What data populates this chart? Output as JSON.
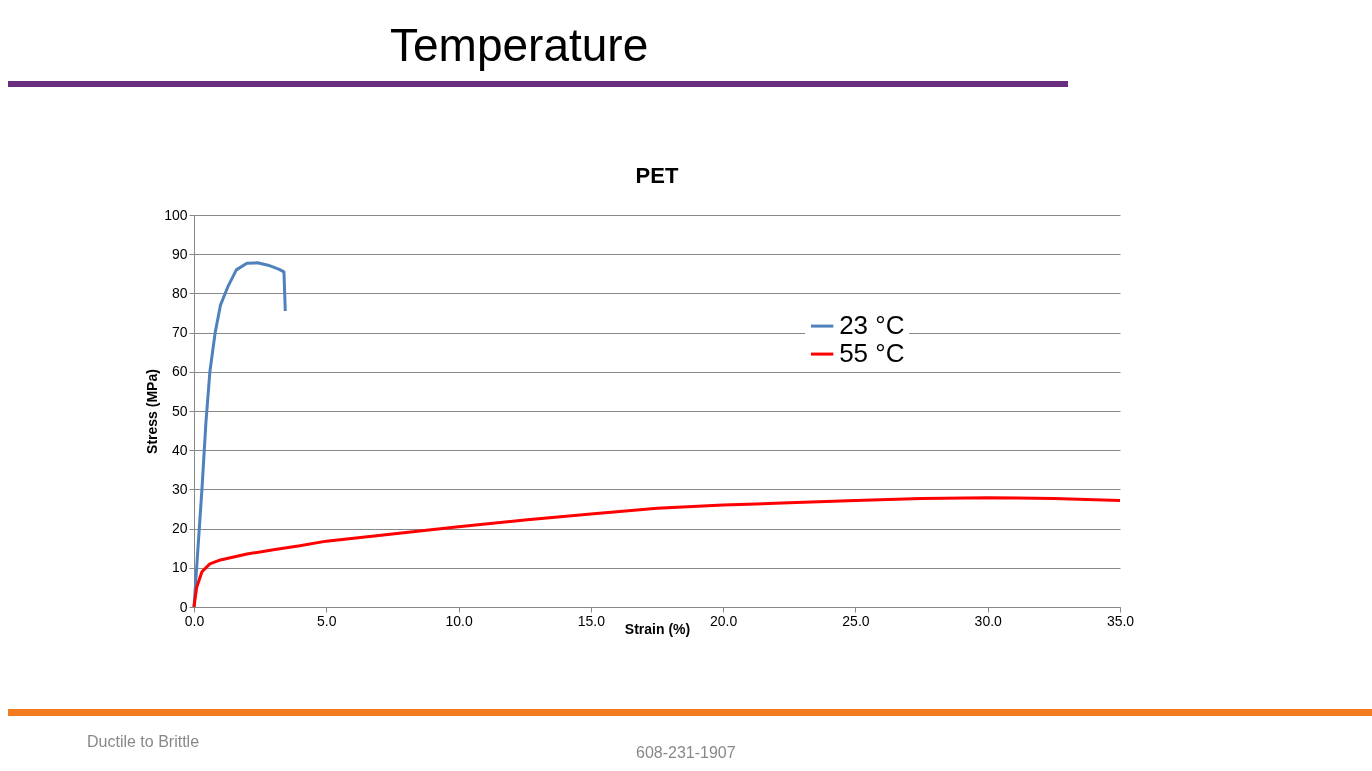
{
  "chart_data": {
    "type": "line",
    "title": "Temperature",
    "subtitle": "PET",
    "xlabel": "Strain (%)",
    "ylabel": "Stress (MPa)",
    "xlim": [
      0,
      35
    ],
    "xticks": [
      {
        "value": 0,
        "label": "0.0"
      },
      {
        "value": 5,
        "label": "5.0"
      },
      {
        "value": 10,
        "label": "10.0"
      },
      {
        "value": 15,
        "label": "15.0"
      },
      {
        "value": 20,
        "label": "20.0"
      },
      {
        "value": 25,
        "label": "25.0"
      },
      {
        "value": 30,
        "label": "30.0"
      },
      {
        "value": 35,
        "label": "35.0"
      }
    ],
    "ylim": [
      0,
      100
    ],
    "yticks": [
      0,
      10,
      20,
      30,
      40,
      50,
      60,
      70,
      80,
      90,
      100
    ],
    "grid": "y",
    "legend": "right",
    "series": [
      {
        "name": "23 °C",
        "color": "#4f81bd",
        "x": [
          0,
          0.15,
          0.3,
          0.45,
          0.6,
          0.8,
          1.0,
          1.3,
          1.6,
          2.0,
          2.4,
          2.8,
          3.2,
          3.4,
          3.45
        ],
        "values": [
          0,
          15,
          30,
          47,
          60,
          70,
          77,
          82,
          86,
          87.7,
          87.8,
          87.2,
          86.2,
          85.5,
          75.5
        ]
      },
      {
        "name": "55 °C",
        "color": "#ff0000",
        "x": [
          0,
          0.1,
          0.3,
          0.6,
          1,
          2,
          3,
          4,
          5,
          7.5,
          10,
          12.5,
          15,
          17.5,
          20,
          22.5,
          25,
          27.5,
          30,
          32.5,
          35
        ],
        "values": [
          0,
          5,
          9,
          11,
          12,
          13.5,
          14.6,
          15.6,
          16.8,
          18.6,
          20.5,
          22.2,
          23.7,
          25.2,
          26,
          26.6,
          27.2,
          27.7,
          27.9,
          27.7,
          27.2
        ]
      }
    ],
    "annotations": [
      "Ductile to Brittle",
      "608-231-1907"
    ]
  }
}
